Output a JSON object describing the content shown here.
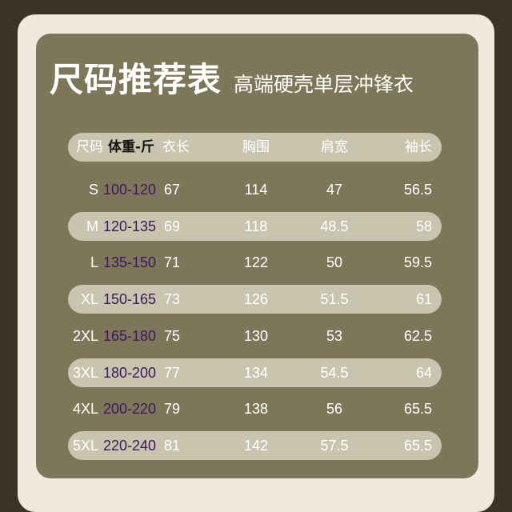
{
  "title": "尺码推荐表",
  "subtitle": "高端硬壳单层冲锋衣",
  "headers": [
    "尺码",
    "体重-斤",
    "衣长",
    "胸围",
    "肩宽",
    "袖长"
  ],
  "rows": [
    [
      "S",
      "100-120",
      "67",
      "114",
      "47",
      "56.5"
    ],
    [
      "M",
      "120-135",
      "69",
      "118",
      "48.5",
      "58"
    ],
    [
      "L",
      "135-150",
      "71",
      "122",
      "50",
      "59.5"
    ],
    [
      "XL",
      "150-165",
      "73",
      "126",
      "51.5",
      "61"
    ],
    [
      "2XL",
      "165-180",
      "75",
      "130",
      "53",
      "62.5"
    ],
    [
      "3XL",
      "180-200",
      "77",
      "134",
      "54.5",
      "64"
    ],
    [
      "4XL",
      "200-220",
      "79",
      "138",
      "56",
      "65.5"
    ],
    [
      "5XL",
      "220-240",
      "81",
      "142",
      "57.5",
      "65.5"
    ]
  ],
  "colors": {
    "panel": "#7e7658",
    "row_highlight": "#c9c4ae",
    "frame": "#eee9da",
    "weight_text": "#3b1860"
  }
}
